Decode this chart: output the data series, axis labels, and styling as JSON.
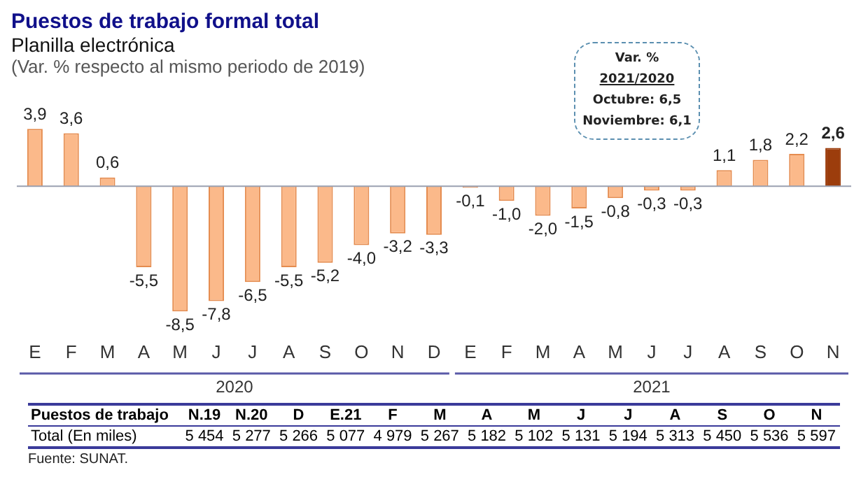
{
  "chart_data": [
    {
      "type": "bar",
      "title": "Puestos de trabajo formal total",
      "subtitle": "Planilla electrónica",
      "ylabel": "(Var. % respecto al mismo periodo de 2019)",
      "categories": [
        "E",
        "F",
        "M",
        "A",
        "M",
        "J",
        "J",
        "A",
        "S",
        "O",
        "N",
        "D",
        "E",
        "F",
        "M",
        "A",
        "M",
        "J",
        "J",
        "A",
        "S",
        "O",
        "N"
      ],
      "values": [
        3.9,
        3.6,
        0.6,
        -5.5,
        -8.5,
        -7.8,
        -6.5,
        -5.5,
        -5.2,
        -4.0,
        -3.2,
        -3.3,
        -0.1,
        -1.0,
        -2.0,
        -1.5,
        -0.8,
        -0.3,
        -0.3,
        1.1,
        1.8,
        2.2,
        2.6
      ],
      "colors": [
        "#fbb98a",
        "#fbb98a",
        "#fbb98a",
        "#fbb98a",
        "#fbb98a",
        "#fbb98a",
        "#fbb98a",
        "#fbb98a",
        "#fbb98a",
        "#fbb98a",
        "#fbb98a",
        "#fbb98a",
        "#fbb98a",
        "#fbb98a",
        "#fbb98a",
        "#fbb98a",
        "#fbb98a",
        "#fbb98a",
        "#fbb98a",
        "#fbb98a",
        "#fbb98a",
        "#fbb98a",
        "#9c3d0c"
      ],
      "value_labels": [
        "3,9",
        "3,6",
        "0,6",
        "-5,5",
        "-8,5",
        "-7,8",
        "-6,5",
        "-5,5",
        "-5,2",
        "-4,0",
        "-3,2",
        "-3,3",
        "-0,1",
        "-1,0",
        "-2,0",
        "-1,5",
        "-0,8",
        "-0,3",
        "-0,3",
        "1,1",
        "1,8",
        "2,2",
        "2,6"
      ],
      "grid": false,
      "legend": false,
      "annotations": [
        "2020",
        "2021",
        "Var. %",
        "2021/2020",
        "Octubre: 6,5",
        "Noviembre: 6,1"
      ]
    },
    {
      "type": "other",
      "xlabel": "Puestos de trabajo",
      "ylabel": "Total (En miles)",
      "categories": [
        "N.19",
        "N.20",
        "D",
        "E.21",
        "F",
        "M",
        "A",
        "M",
        "J",
        "J",
        "A",
        "S",
        "O",
        "N"
      ],
      "values": [
        5454,
        5277,
        5266,
        5077,
        4979,
        5267,
        5182,
        5102,
        5131,
        5194,
        5313,
        5450,
        5536,
        5597
      ],
      "value_labels": [
        "5 454",
        "5 277",
        "5 266",
        "5 077",
        "4 979",
        "5 267",
        "5 182",
        "5 102",
        "5 131",
        "5 194",
        "5 313",
        "5 450",
        "5 536",
        "5 597"
      ],
      "annotations": [
        "Fuente: SUNAT."
      ]
    }
  ]
}
